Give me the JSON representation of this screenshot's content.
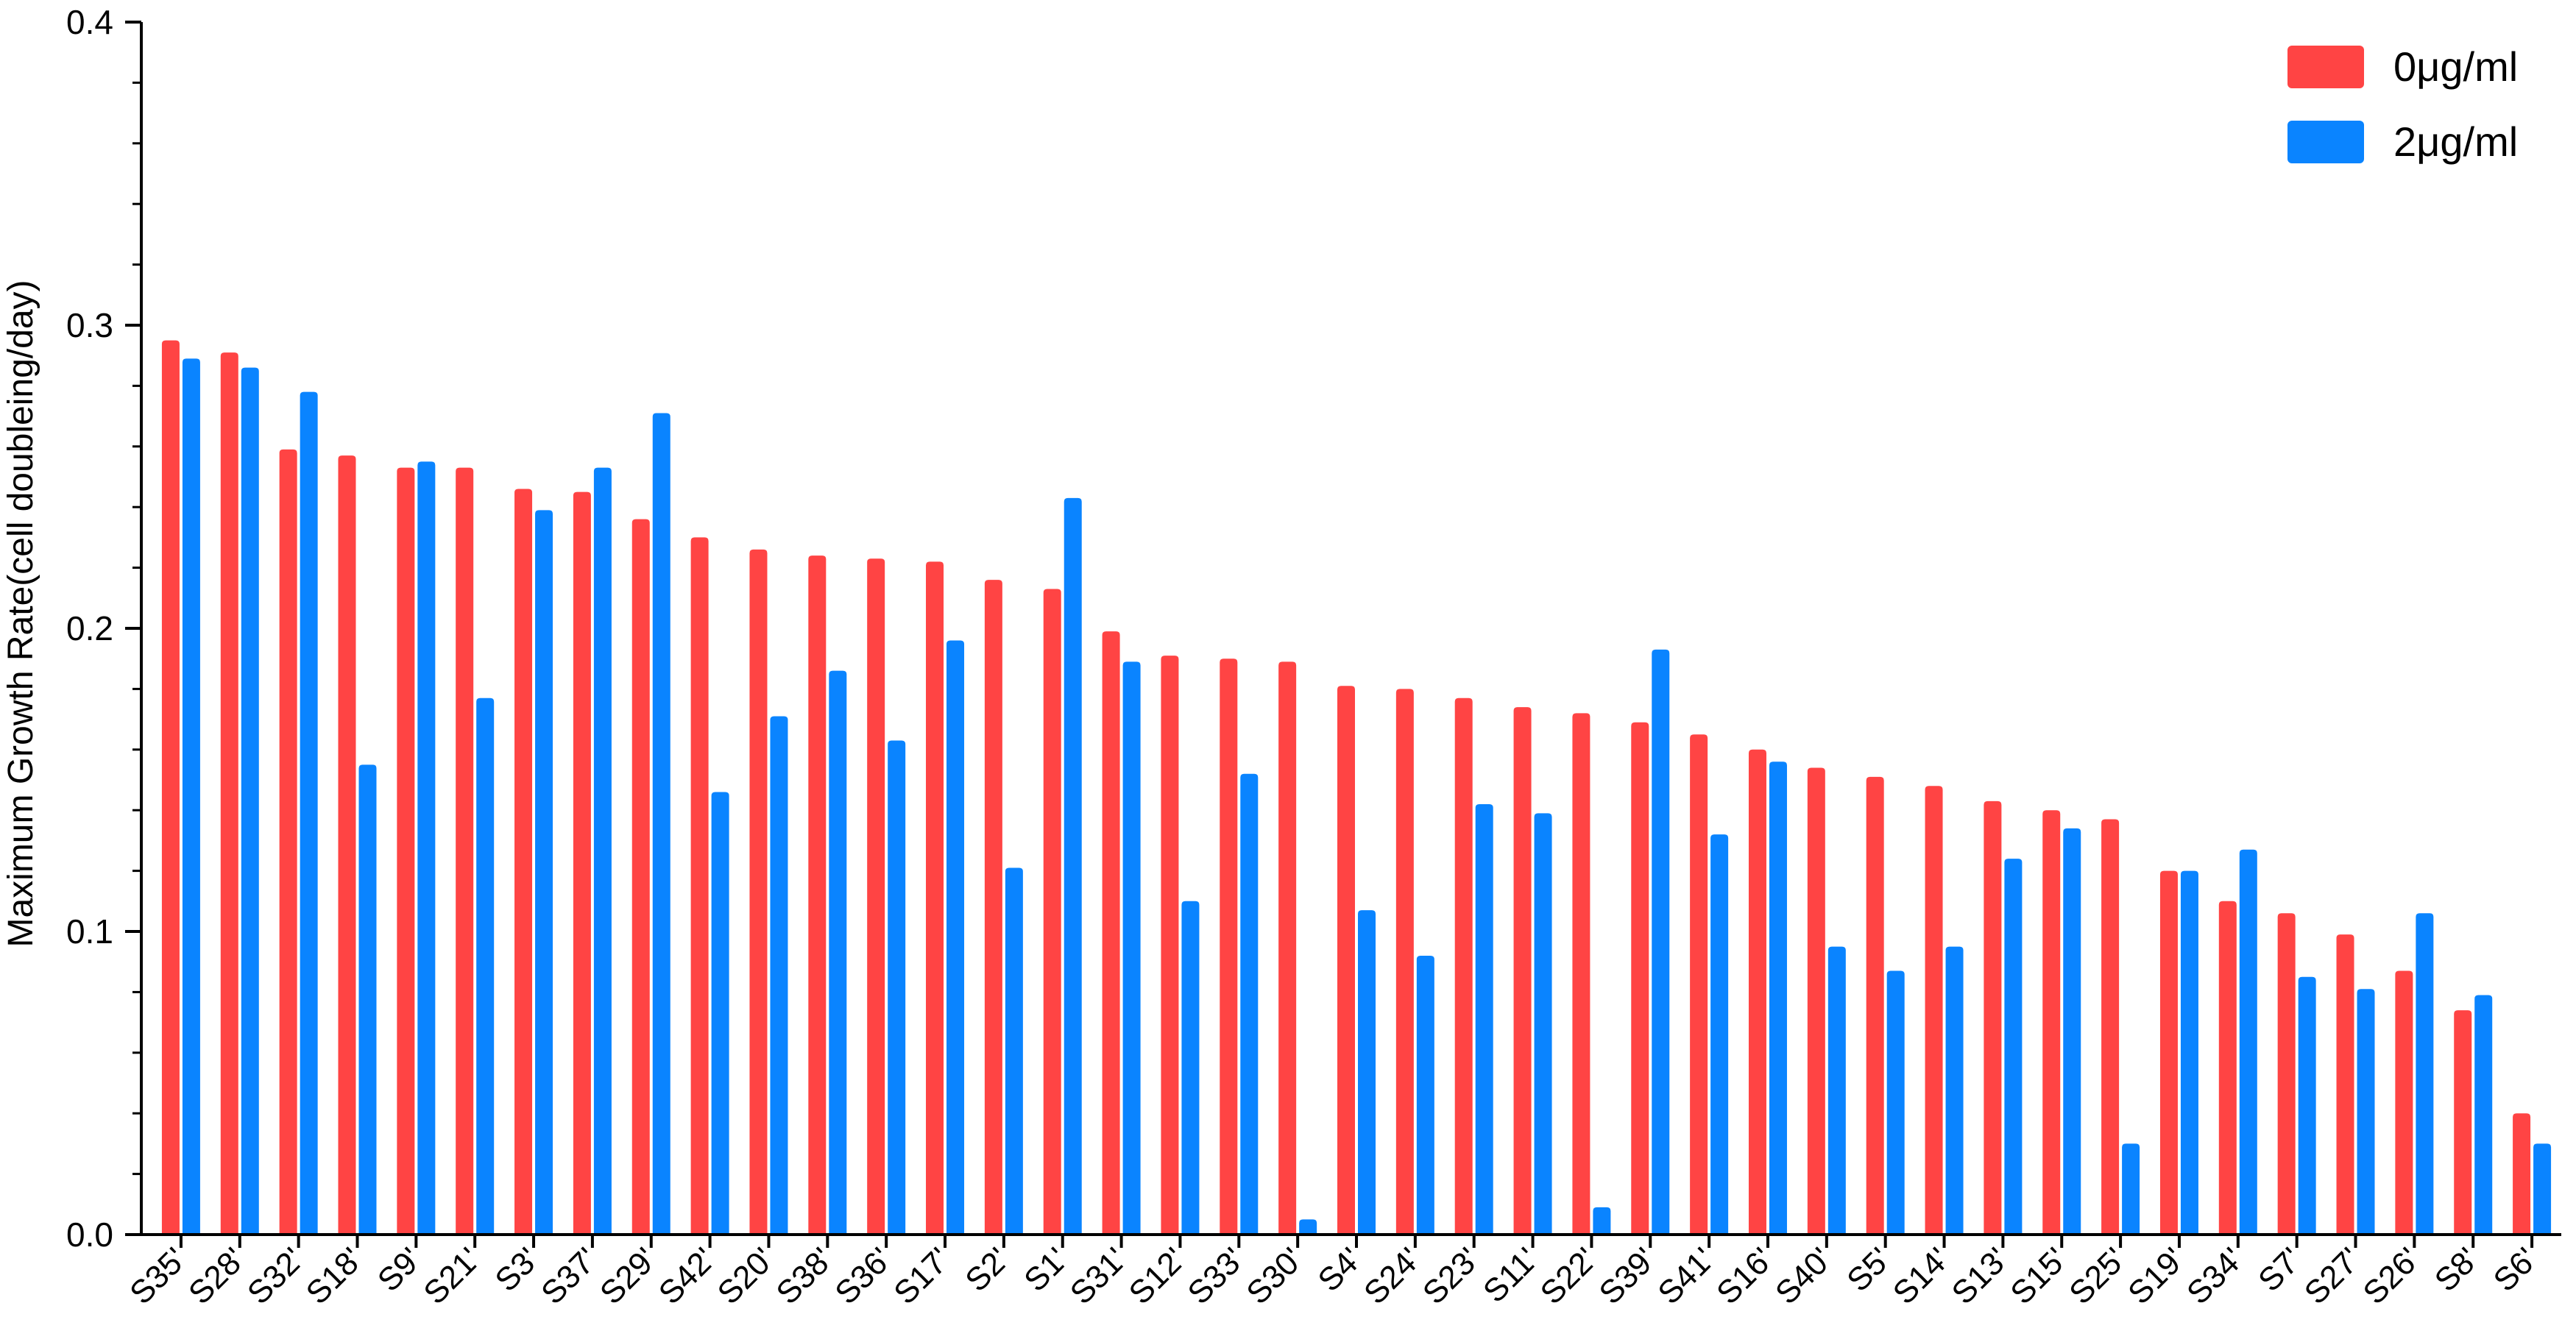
{
  "chart_data": {
    "type": "bar",
    "title": "",
    "xlabel": "",
    "ylabel": "Maximum Growth Rate(cell doubleing/day)",
    "ylim": [
      0,
      0.4
    ],
    "yticks": [
      "0.0",
      "0.1",
      "0.2",
      "0.3",
      "0.4"
    ],
    "ytick_values": [
      0,
      0.1,
      0.2,
      0.3,
      0.4
    ],
    "grid": false,
    "legend_position": "top-right",
    "categories": [
      "S35'",
      "S28'",
      "S32'",
      "S18'",
      "S9'",
      "S21'",
      "S3'",
      "S37'",
      "S29'",
      "S42'",
      "S20'",
      "S38'",
      "S36'",
      "S17'",
      "S2'",
      "S1'",
      "S31'",
      "S12'",
      "S33'",
      "S30'",
      "S4'",
      "S24'",
      "S23'",
      "S11'",
      "S22'",
      "S39'",
      "S41'",
      "S16'",
      "S40'",
      "S5'",
      "S14'",
      "S13'",
      "S15'",
      "S25'",
      "S19'",
      "S34'",
      "S7'",
      "S27'",
      "S26'",
      "S8'",
      "S6'"
    ],
    "series": [
      {
        "name": "0μg/ml",
        "color": "#ff4444",
        "values": [
          0.295,
          0.291,
          0.259,
          0.257,
          0.253,
          0.253,
          0.246,
          0.245,
          0.236,
          0.23,
          0.226,
          0.224,
          0.223,
          0.222,
          0.216,
          0.213,
          0.199,
          0.191,
          0.19,
          0.189,
          0.181,
          0.18,
          0.177,
          0.174,
          0.172,
          0.169,
          0.165,
          0.16,
          0.154,
          0.151,
          0.148,
          0.143,
          0.14,
          0.137,
          0.12,
          0.11,
          0.106,
          0.099,
          0.087,
          0.074,
          0.04
        ]
      },
      {
        "name": "2μg/ml",
        "color": "#0a84ff",
        "values": [
          0.289,
          0.286,
          0.278,
          0.155,
          0.255,
          0.177,
          0.239,
          0.253,
          0.271,
          0.146,
          0.171,
          0.186,
          0.163,
          0.196,
          0.121,
          0.243,
          0.189,
          0.11,
          0.152,
          0.005,
          0.107,
          0.092,
          0.142,
          0.139,
          0.009,
          0.193,
          0.132,
          0.156,
          0.095,
          0.087,
          0.095,
          0.124,
          0.134,
          0.03,
          0.12,
          0.127,
          0.085,
          0.081,
          0.106,
          0.079,
          0.03
        ]
      }
    ]
  }
}
